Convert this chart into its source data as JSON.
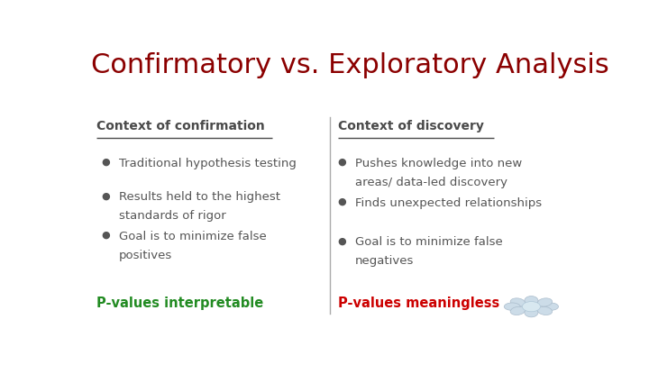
{
  "title": "Confirmatory vs. Exploratory Analysis",
  "title_color": "#8B0000",
  "title_fontsize": 22,
  "bg_color": "#FFFFFF",
  "left_header": "Context of confirmation",
  "right_header": "Context of discovery",
  "header_color": "#4a4a4a",
  "header_fontsize": 10,
  "bullet_color": "#555555",
  "bullet_fontsize": 9.5,
  "bullet_marker_color": "#555555",
  "left_bullets": [
    "Traditional hypothesis testing",
    "Results held to the highest\nstandards of rigor",
    "Goal is to minimize false\npositives"
  ],
  "right_bullets": [
    "Pushes knowledge into new\nareas/ data-led discovery",
    "Finds unexpected relationships",
    "Goal is to minimize false\nnegatives"
  ],
  "left_footer": "P-values interpretable",
  "right_footer": "P-values meaningless",
  "footer_color": "#228B22",
  "footer_right_color": "#CC0000",
  "footer_fontsize": 10.5
}
